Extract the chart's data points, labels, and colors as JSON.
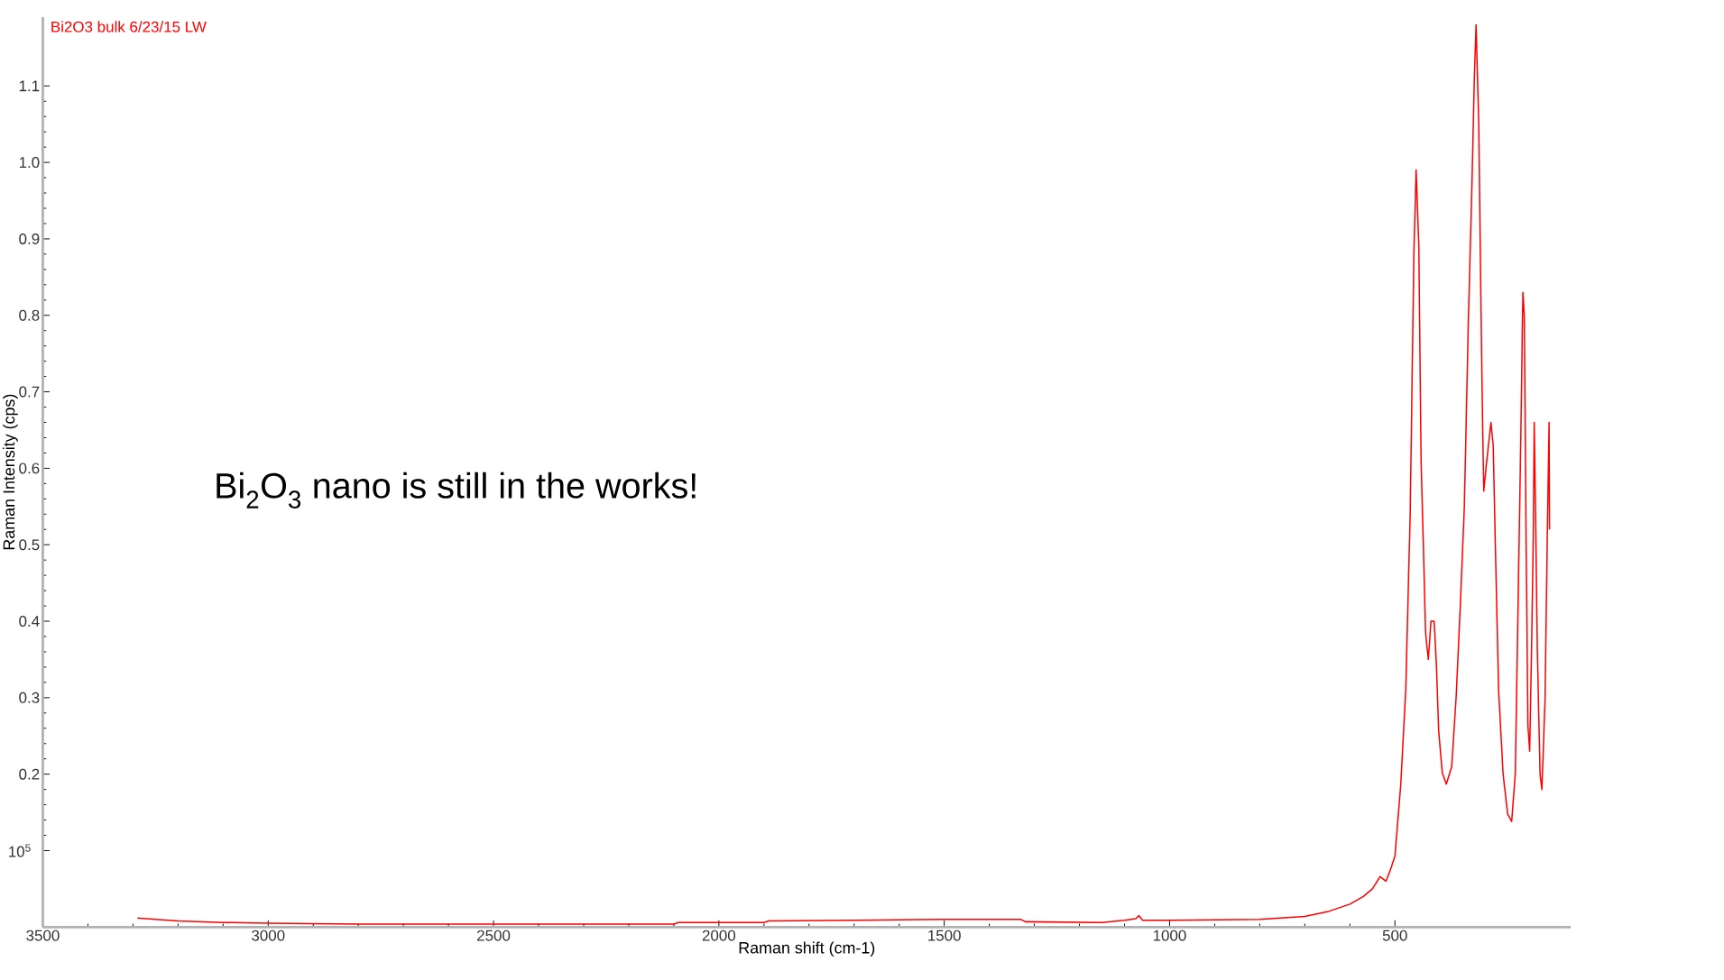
{
  "chart_data": {
    "type": "line",
    "xlabel": "Raman shift (cm-1)",
    "ylabel": "Raman Intensity (cps)",
    "xlim": [
      3500,
      110
    ],
    "ylim": [
      0,
      1.19
    ],
    "xticks": [
      3500,
      3000,
      2500,
      2000,
      1500,
      1000,
      500
    ],
    "yticks": [
      {
        "value": 0.1,
        "label": null
      },
      {
        "value": 0.2,
        "label": "0.2"
      },
      {
        "value": 0.3,
        "label": "0.3"
      },
      {
        "value": 0.4,
        "label": "0.4"
      },
      {
        "value": 0.5,
        "label": "0.5"
      },
      {
        "value": 0.6,
        "label": "0.6"
      },
      {
        "value": 0.7,
        "label": "0.7"
      },
      {
        "value": 0.8,
        "label": "0.8"
      },
      {
        "value": 0.9,
        "label": "0.9"
      },
      {
        "value": 1.0,
        "label": "1.0"
      },
      {
        "value": 1.1,
        "label": "1.1"
      }
    ],
    "annotations": [
      "Bi$_{2}$O$_{3}$ nano is still in the works!",
      "10$^{5}$"
    ],
    "series": [
      {
        "name": "Bi2O3 bulk 6/23/15 LW",
        "color": "#ff0000",
        "x": [
          3290,
          3250,
          3200,
          3100,
          3000,
          2800,
          2500,
          2100,
          2090,
          1900,
          1890,
          1700,
          1500,
          1330,
          1320,
          1150,
          1100,
          1075,
          1068,
          1060,
          1000,
          800,
          700,
          650,
          600,
          570,
          550,
          533,
          520,
          510,
          500,
          487,
          476,
          466,
          458,
          453,
          447,
          442,
          437,
          432,
          426,
          420,
          413,
          408,
          403,
          395,
          386,
          374,
          364,
          355,
          346,
          337,
          329,
          324,
          320,
          314,
          311,
          307,
          303,
          298,
          287,
          282,
          276,
          270,
          260,
          250,
          241,
          233,
          226,
          221,
          217,
          216,
          213,
          209,
          205,
          201,
          197,
          193,
          191,
          188,
          184,
          178,
          174,
          167,
          162,
          158,
          157
        ],
        "values": [
          0.012,
          0.01,
          0.008,
          0.006,
          0.005,
          0.004,
          0.004,
          0.004,
          0.006,
          0.006,
          0.008,
          0.009,
          0.01,
          0.01,
          0.007,
          0.006,
          0.009,
          0.011,
          0.015,
          0.009,
          0.009,
          0.01,
          0.014,
          0.02,
          0.03,
          0.04,
          0.05,
          0.066,
          0.06,
          0.075,
          0.093,
          0.187,
          0.31,
          0.545,
          0.88,
          0.99,
          0.89,
          0.61,
          0.5,
          0.385,
          0.35,
          0.4,
          0.4,
          0.343,
          0.257,
          0.202,
          0.187,
          0.21,
          0.303,
          0.42,
          0.55,
          0.795,
          0.974,
          1.107,
          1.18,
          1.05,
          0.904,
          0.717,
          0.57,
          0.6,
          0.66,
          0.63,
          0.467,
          0.31,
          0.2,
          0.148,
          0.138,
          0.2,
          0.45,
          0.63,
          0.795,
          0.83,
          0.8,
          0.51,
          0.264,
          0.23,
          0.36,
          0.51,
          0.66,
          0.54,
          0.36,
          0.2,
          0.18,
          0.296,
          0.51,
          0.66,
          0.52
        ]
      }
    ]
  }
}
